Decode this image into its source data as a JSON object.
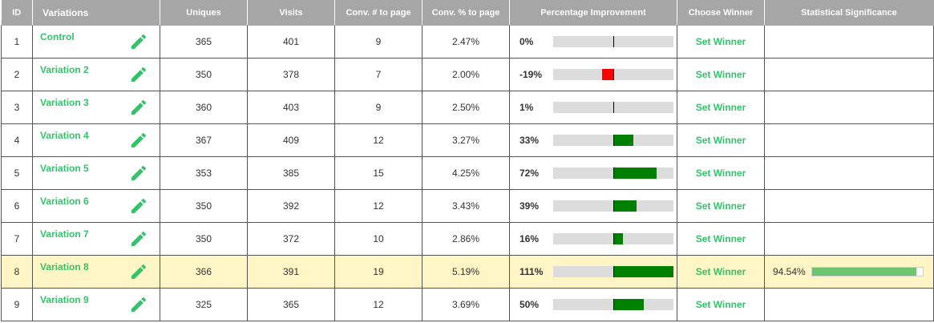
{
  "headers": {
    "id": "ID",
    "variations": "Variations",
    "uniques": "Uniques",
    "visits": "Visits",
    "conv_num": "Conv. # to page",
    "conv_pct": "Conv. % to page",
    "improvement": "Percentage Improvement",
    "choose_winner": "Choose Winner",
    "significance": "Statistical Significance"
  },
  "colors": {
    "accent_green": "#33c46a",
    "positive_bar": "#008000",
    "negative_bar": "#ff0000",
    "significance_bar": "#6fc46f",
    "highlight_row": "#fff5c5"
  },
  "icons": {
    "edit": "pencil-icon"
  },
  "rows": [
    {
      "id": "1",
      "name": "Control",
      "uniques": "365",
      "visits": "401",
      "conv_num": "9",
      "conv_pct": "2.47%",
      "improvement_label": "0%",
      "improvement": 0,
      "winner": "Set Winner",
      "significance_label": "",
      "significance": null,
      "highlight": false
    },
    {
      "id": "2",
      "name": "Variation 2",
      "uniques": "350",
      "visits": "378",
      "conv_num": "7",
      "conv_pct": "2.00%",
      "improvement_label": "-19%",
      "improvement": -19,
      "winner": "Set Winner",
      "significance_label": "",
      "significance": null,
      "highlight": false
    },
    {
      "id": "3",
      "name": "Variation 3",
      "uniques": "360",
      "visits": "403",
      "conv_num": "9",
      "conv_pct": "2.50%",
      "improvement_label": "1%",
      "improvement": 1,
      "winner": "Set Winner",
      "significance_label": "",
      "significance": null,
      "highlight": false
    },
    {
      "id": "4",
      "name": "Variation 4",
      "uniques": "367",
      "visits": "409",
      "conv_num": "12",
      "conv_pct": "3.27%",
      "improvement_label": "33%",
      "improvement": 33,
      "winner": "Set Winner",
      "significance_label": "",
      "significance": null,
      "highlight": false
    },
    {
      "id": "5",
      "name": "Variation 5",
      "uniques": "353",
      "visits": "385",
      "conv_num": "15",
      "conv_pct": "4.25%",
      "improvement_label": "72%",
      "improvement": 72,
      "winner": "Set Winner",
      "significance_label": "",
      "significance": null,
      "highlight": false
    },
    {
      "id": "6",
      "name": "Variation 6",
      "uniques": "350",
      "visits": "392",
      "conv_num": "12",
      "conv_pct": "3.43%",
      "improvement_label": "39%",
      "improvement": 39,
      "winner": "Set Winner",
      "significance_label": "",
      "significance": null,
      "highlight": false
    },
    {
      "id": "7",
      "name": "Variation 7",
      "uniques": "350",
      "visits": "372",
      "conv_num": "10",
      "conv_pct": "2.86%",
      "improvement_label": "16%",
      "improvement": 16,
      "winner": "Set Winner",
      "significance_label": "",
      "significance": null,
      "highlight": false
    },
    {
      "id": "8",
      "name": "Variation 8",
      "uniques": "366",
      "visits": "391",
      "conv_num": "19",
      "conv_pct": "5.19%",
      "improvement_label": "111%",
      "improvement": 111,
      "winner": "Set Winner",
      "significance_label": "94.54%",
      "significance": 94.54,
      "highlight": true
    },
    {
      "id": "9",
      "name": "Variation 9",
      "uniques": "325",
      "visits": "365",
      "conv_num": "12",
      "conv_pct": "3.69%",
      "improvement_label": "50%",
      "improvement": 50,
      "winner": "Set Winner",
      "significance_label": "",
      "significance": null,
      "highlight": false
    }
  ]
}
